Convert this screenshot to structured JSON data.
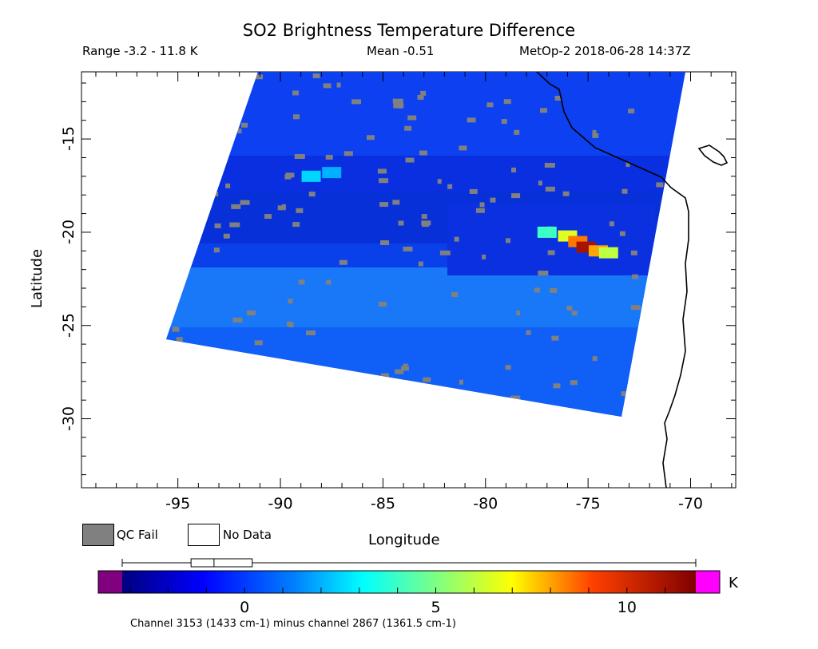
{
  "header": {
    "title": "SO2 Brightness Temperature Difference",
    "range": "Range -3.2 - 11.8 K",
    "mean": "Mean -0.51",
    "satellite": "MetOp-2 2018-06-28 14:37Z"
  },
  "axes": {
    "xlabel": "Longitude",
    "ylabel": "Latitude",
    "x_ticks": [
      "-95",
      "-90",
      "-85",
      "-80",
      "-75",
      "-70"
    ],
    "y_ticks": [
      "-15",
      "-20",
      "-25",
      "-30"
    ],
    "lon_range": [
      -99.7,
      -67.8
    ],
    "lat_range": [
      -33.7,
      -11.4
    ]
  },
  "legend": {
    "qc_fail": "QC Fail",
    "no_data": "No Data",
    "qc_color": "#808080"
  },
  "colorbar": {
    "unit": "K",
    "ticks": [
      "0",
      "5",
      "10"
    ],
    "tick_values": [
      0,
      5,
      10
    ],
    "range": [
      -3.2,
      11.8
    ],
    "underflow_color": "#800080",
    "overflow_color": "#ff00ff",
    "channel_note": "Channel 3153 (1433 cm-1) minus channel 2867 (1361.5 cm-1)",
    "boxplot": {
      "min": -3.2,
      "q1": -1.4,
      "median": -0.8,
      "q3": 0.2,
      "max": 11.8
    }
  },
  "chart_data": {
    "type": "heatmap",
    "title": "SO2 Brightness Temperature Difference",
    "xlabel": "Longitude",
    "ylabel": "Latitude",
    "xlim": [
      -99.7,
      -67.8
    ],
    "ylim": [
      -33.7,
      -11.4
    ],
    "unit": "K",
    "plume": [
      {
        "lon": -88.5,
        "lat": -17.0,
        "value": 2.5
      },
      {
        "lon": -87.5,
        "lat": -16.8,
        "value": 2.0
      },
      {
        "lon": -77.0,
        "lat": -20.0,
        "value": 4.0
      },
      {
        "lon": -76.0,
        "lat": -20.2,
        "value": 6.5
      },
      {
        "lon": -75.5,
        "lat": -20.5,
        "value": 8.5
      },
      {
        "lon": -75.1,
        "lat": -20.8,
        "value": 11.0
      },
      {
        "lon": -74.5,
        "lat": -21.0,
        "value": 8.0
      },
      {
        "lon": -74.0,
        "lat": -21.1,
        "value": 6.0
      }
    ]
  }
}
